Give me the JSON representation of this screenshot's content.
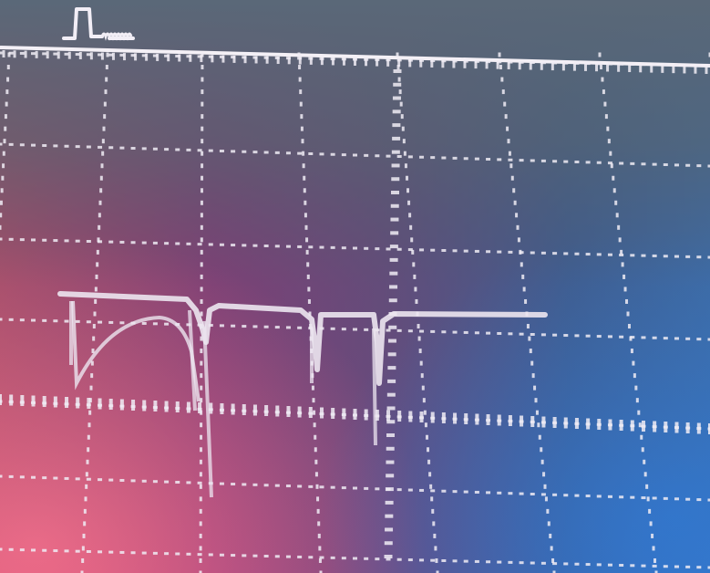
{
  "scene": {
    "subject": "oscilloscope-screen-photo",
    "colors": {
      "base": "#3a4660",
      "top_band": "#4e5d6e",
      "left_warm": "#e0506e",
      "center_magenta": "#8e3a7a",
      "right_blue": "#2f6fc0",
      "trace": "#e8e2ee",
      "graticule": "#f0ecf4"
    },
    "graticule": {
      "major_columns": 7,
      "major_rows": 6,
      "minor_per_division": 5
    },
    "trigger_marker": {
      "icon": "trigger-pulse-icon"
    }
  }
}
